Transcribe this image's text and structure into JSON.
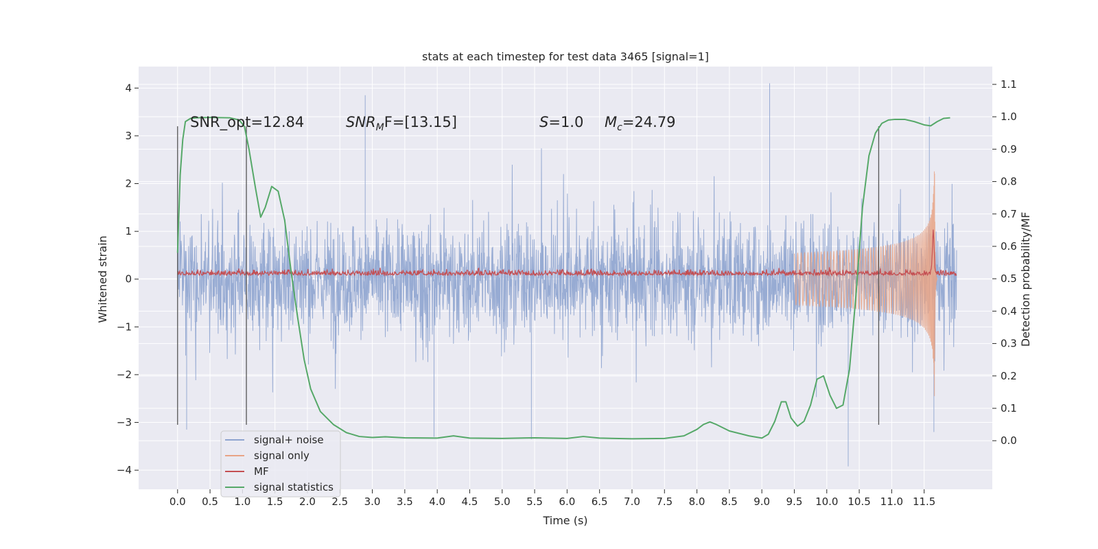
{
  "chart_data": {
    "type": "line",
    "title": "stats at each timestep for test data 3465 [signal=1]",
    "xlabel": "Time (s)",
    "ylabel_left": "Whitened strain",
    "ylabel_right": "Detection probability/MF",
    "xlim": [
      -0.6,
      12.55
    ],
    "ylim_left": [
      -4.4,
      4.45
    ],
    "ylim_right": [
      -0.15,
      1.155
    ],
    "x_ticks": [
      "0.0",
      "0.5",
      "1.0",
      "1.5",
      "2.0",
      "2.5",
      "3.0",
      "3.5",
      "4.0",
      "4.5",
      "5.0",
      "5.5",
      "6.0",
      "6.5",
      "7.0",
      "7.5",
      "8.0",
      "8.5",
      "9.0",
      "9.5",
      "10.0",
      "10.5",
      "11.0",
      "11.5"
    ],
    "y_ticks_left": [
      "−4",
      "−3",
      "−2",
      "−1",
      "0",
      "1",
      "2",
      "3",
      "4"
    ],
    "y_ticks_right": [
      "0.0",
      "0.1",
      "0.2",
      "0.3",
      "0.4",
      "0.5",
      "0.6",
      "0.7",
      "0.8",
      "0.9",
      "1.0",
      "1.1"
    ],
    "grid": true,
    "annotations": {
      "snr_opt": "SNR_opt=12.84",
      "snr_mf_label": "SNR",
      "snr_mf_sub": "M",
      "snr_mf_rest": "F=[13.15]",
      "s_label": "S",
      "s_rest": "=1.0",
      "mc_label": "M",
      "mc_sub": "c",
      "mc_rest": "=24.79"
    },
    "vlines_x": [
      0.0,
      1.06,
      10.8
    ],
    "vlines_range_left": [
      -3.05,
      3.2
    ],
    "legend": {
      "position": "lower-left",
      "entries": [
        {
          "name": "signal+ noise",
          "color": "#8ea4cf"
        },
        {
          "name": "signal only",
          "color": "#e8a385"
        },
        {
          "name": "MF",
          "color": "#c44e52"
        },
        {
          "name": "signal statistics",
          "color": "#55a868"
        }
      ]
    },
    "series": [
      {
        "name": "signal statistics",
        "axis": "right",
        "color": "#55a868",
        "x": [
          0.0,
          0.04,
          0.08,
          0.12,
          0.2,
          0.3,
          0.5,
          0.8,
          0.95,
          1.03,
          1.1,
          1.2,
          1.28,
          1.35,
          1.45,
          1.55,
          1.65,
          1.75,
          1.85,
          1.95,
          2.05,
          2.2,
          2.4,
          2.6,
          2.8,
          3.0,
          3.2,
          3.5,
          4.0,
          4.25,
          4.5,
          5.0,
          5.5,
          6.0,
          6.25,
          6.5,
          7.0,
          7.5,
          7.8,
          8.0,
          8.1,
          8.2,
          8.3,
          8.5,
          8.8,
          9.0,
          9.1,
          9.2,
          9.3,
          9.37,
          9.45,
          9.55,
          9.65,
          9.75,
          9.85,
          9.95,
          10.05,
          10.15,
          10.25,
          10.35,
          10.45,
          10.55,
          10.65,
          10.75,
          10.85,
          10.95,
          11.05,
          11.2,
          11.35,
          11.5,
          11.6,
          11.7,
          11.8,
          11.9
        ],
        "values": [
          0.58,
          0.82,
          0.93,
          0.985,
          0.995,
          0.997,
          0.998,
          0.997,
          0.99,
          0.97,
          0.9,
          0.78,
          0.69,
          0.72,
          0.785,
          0.77,
          0.68,
          0.52,
          0.38,
          0.25,
          0.16,
          0.09,
          0.05,
          0.025,
          0.013,
          0.01,
          0.012,
          0.009,
          0.008,
          0.015,
          0.008,
          0.007,
          0.009,
          0.007,
          0.013,
          0.008,
          0.006,
          0.007,
          0.015,
          0.035,
          0.05,
          0.058,
          0.05,
          0.03,
          0.015,
          0.008,
          0.02,
          0.06,
          0.12,
          0.12,
          0.07,
          0.045,
          0.06,
          0.11,
          0.19,
          0.2,
          0.14,
          0.1,
          0.11,
          0.22,
          0.45,
          0.72,
          0.88,
          0.95,
          0.98,
          0.99,
          0.992,
          0.992,
          0.985,
          0.975,
          0.972,
          0.985,
          0.995,
          0.997
        ]
      },
      {
        "name": "signal+ noise",
        "axis": "left",
        "color": "#8ea4cf",
        "x_range": [
          0.0,
          12.0
        ],
        "typical_amplitude": 1.35,
        "peaks": [
          {
            "x": 2.89,
            "y": 3.85
          },
          {
            "x": 9.12,
            "y": 4.1
          },
          {
            "x": 10.33,
            "y": -3.92
          },
          {
            "x": 11.58,
            "y": 3.4
          },
          {
            "x": 5.45,
            "y": -3.35
          },
          {
            "x": 3.95,
            "y": -3.3
          },
          {
            "x": 0.14,
            "y": -3.15
          },
          {
            "x": 11.65,
            "y": -3.2
          }
        ]
      },
      {
        "name": "signal only",
        "axis": "left",
        "color": "#e8a385",
        "chirp_start": 9.5,
        "merger_time": 11.66,
        "peak_amplitude": 2.6
      },
      {
        "name": "MF",
        "axis": "left",
        "color": "#c44e52",
        "baseline": 0.08,
        "noise_band": 0.28,
        "peak": {
          "x": 11.64,
          "y": 1.0
        }
      }
    ]
  }
}
